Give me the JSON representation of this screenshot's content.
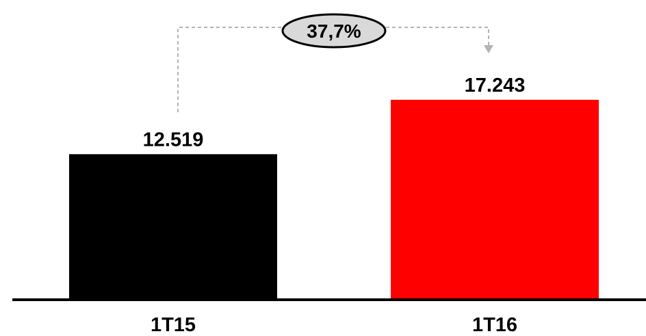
{
  "chart_data": {
    "type": "bar",
    "categories": [
      "1T15",
      "1T16"
    ],
    "values": [
      12519,
      17243
    ],
    "value_labels": [
      "12.519",
      "17.243"
    ],
    "colors": [
      "#000000",
      "#ff0000"
    ],
    "title": "",
    "xlabel": "",
    "ylabel": "",
    "ylim": [
      0,
      22000
    ],
    "grid": false,
    "legend": "none",
    "growth_annotation": {
      "label": "37,7%",
      "from_category": "1T15",
      "to_category": "1T16"
    }
  }
}
